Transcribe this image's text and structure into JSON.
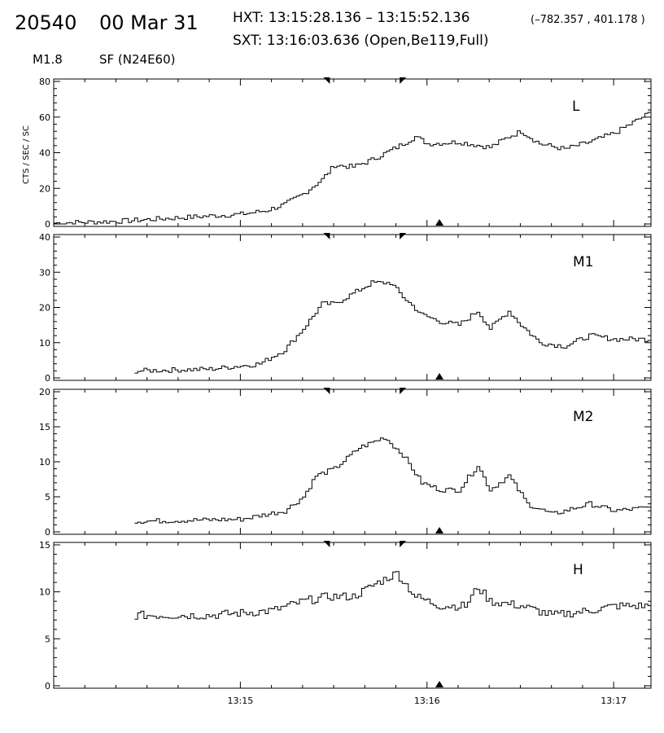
{
  "header": {
    "event_id": "20540",
    "date": "00 Mar 31",
    "hxt": "HXT: 13:15:28.136 – 13:15:52.136",
    "coords": "(–782.357 , 401.178 )",
    "sxt": "SXT: 13:16:03.636 (Open,Be119,Full)",
    "flare_class": "M1.8",
    "goes": "SF (N24E60)"
  },
  "chart_data": {
    "type": "line",
    "ylabel": "CTS / SEC / SC",
    "x_range": [
      "13:14:00",
      "13:17:12"
    ],
    "x_ticks": [
      "13:15",
      "13:16",
      "13:17"
    ],
    "markers": {
      "hxt_start": "13:15:28",
      "hxt_end": "13:15:52",
      "sxt": "13:16:04"
    },
    "panels": [
      {
        "name": "L",
        "ylim": [
          0,
          80
        ],
        "yticks": [
          "0",
          "20",
          "40",
          "60",
          "80"
        ],
        "series": [
          [
            "13:14:00",
            0.5
          ],
          [
            "13:14:20",
            1.5
          ],
          [
            "13:14:40",
            3.5
          ],
          [
            "13:14:50",
            4.5
          ],
          [
            "13:15:00",
            5.5
          ],
          [
            "13:15:08",
            7.5
          ],
          [
            "13:15:14",
            11
          ],
          [
            "13:15:20",
            17
          ],
          [
            "13:15:26",
            25
          ],
          [
            "13:15:30",
            33
          ],
          [
            "13:15:36",
            32
          ],
          [
            "13:15:42",
            36
          ],
          [
            "13:15:50",
            43
          ],
          [
            "13:15:56",
            49
          ],
          [
            "13:16:00",
            45
          ],
          [
            "13:16:10",
            46
          ],
          [
            "13:16:20",
            43
          ],
          [
            "13:16:26",
            49
          ],
          [
            "13:16:30",
            52
          ],
          [
            "13:16:36",
            45
          ],
          [
            "13:16:44",
            42
          ],
          [
            "13:16:52",
            46
          ],
          [
            "13:17:00",
            51
          ],
          [
            "13:17:12",
            63
          ]
        ]
      },
      {
        "name": "M1",
        "ylim": [
          0,
          40
        ],
        "yticks": [
          "0",
          "10",
          "20",
          "30",
          "40"
        ],
        "series": [
          [
            "13:14:26",
            2
          ],
          [
            "13:14:50",
            2.5
          ],
          [
            "13:15:06",
            4
          ],
          [
            "13:15:14",
            8
          ],
          [
            "13:15:20",
            14
          ],
          [
            "13:15:26",
            21
          ],
          [
            "13:15:30",
            21
          ],
          [
            "13:15:36",
            24
          ],
          [
            "13:15:42",
            27
          ],
          [
            "13:15:48",
            27
          ],
          [
            "13:15:52",
            23
          ],
          [
            "13:15:58",
            18
          ],
          [
            "13:16:04",
            16
          ],
          [
            "13:16:10",
            15
          ],
          [
            "13:16:16",
            19
          ],
          [
            "13:16:20",
            14
          ],
          [
            "13:16:26",
            19
          ],
          [
            "13:16:30",
            15
          ],
          [
            "13:16:36",
            10
          ],
          [
            "13:16:44",
            9
          ],
          [
            "13:16:52",
            12
          ],
          [
            "13:17:00",
            11
          ],
          [
            "13:17:12",
            11
          ]
        ]
      },
      {
        "name": "M2",
        "ylim": [
          0,
          20
        ],
        "yticks": [
          "0",
          "5",
          "10",
          "15",
          "20"
        ],
        "series": [
          [
            "13:14:26",
            1.5
          ],
          [
            "13:15:00",
            1.8
          ],
          [
            "13:15:14",
            3
          ],
          [
            "13:15:20",
            5
          ],
          [
            "13:15:24",
            8
          ],
          [
            "13:15:30",
            9
          ],
          [
            "13:15:38",
            12
          ],
          [
            "13:15:46",
            13.5
          ],
          [
            "13:15:52",
            11
          ],
          [
            "13:15:58",
            7
          ],
          [
            "13:16:04",
            6
          ],
          [
            "13:16:10",
            6
          ],
          [
            "13:16:16",
            9.5
          ],
          [
            "13:16:20",
            6
          ],
          [
            "13:16:26",
            8
          ],
          [
            "13:16:32",
            4
          ],
          [
            "13:16:40",
            2.5
          ],
          [
            "13:16:52",
            4
          ],
          [
            "13:17:00",
            3
          ],
          [
            "13:17:12",
            3.5
          ]
        ]
      },
      {
        "name": "H",
        "ylim": [
          0,
          15
        ],
        "yticks": [
          "0",
          "5",
          "10",
          "15"
        ],
        "series": [
          [
            "13:14:26",
            7.5
          ],
          [
            "13:14:50",
            7.5
          ],
          [
            "13:15:10",
            8
          ],
          [
            "13:15:20",
            9
          ],
          [
            "13:15:28",
            9.5
          ],
          [
            "13:15:36",
            9.5
          ],
          [
            "13:15:44",
            11
          ],
          [
            "13:15:50",
            12
          ],
          [
            "13:15:56",
            9.5
          ],
          [
            "13:16:04",
            8.5
          ],
          [
            "13:16:12",
            8.5
          ],
          [
            "13:16:16",
            10.5
          ],
          [
            "13:16:20",
            9
          ],
          [
            "13:16:30",
            8.5
          ],
          [
            "13:16:40",
            7.5
          ],
          [
            "13:16:52",
            8
          ],
          [
            "13:17:00",
            8.5
          ],
          [
            "13:17:12",
            8.5
          ]
        ]
      }
    ]
  }
}
